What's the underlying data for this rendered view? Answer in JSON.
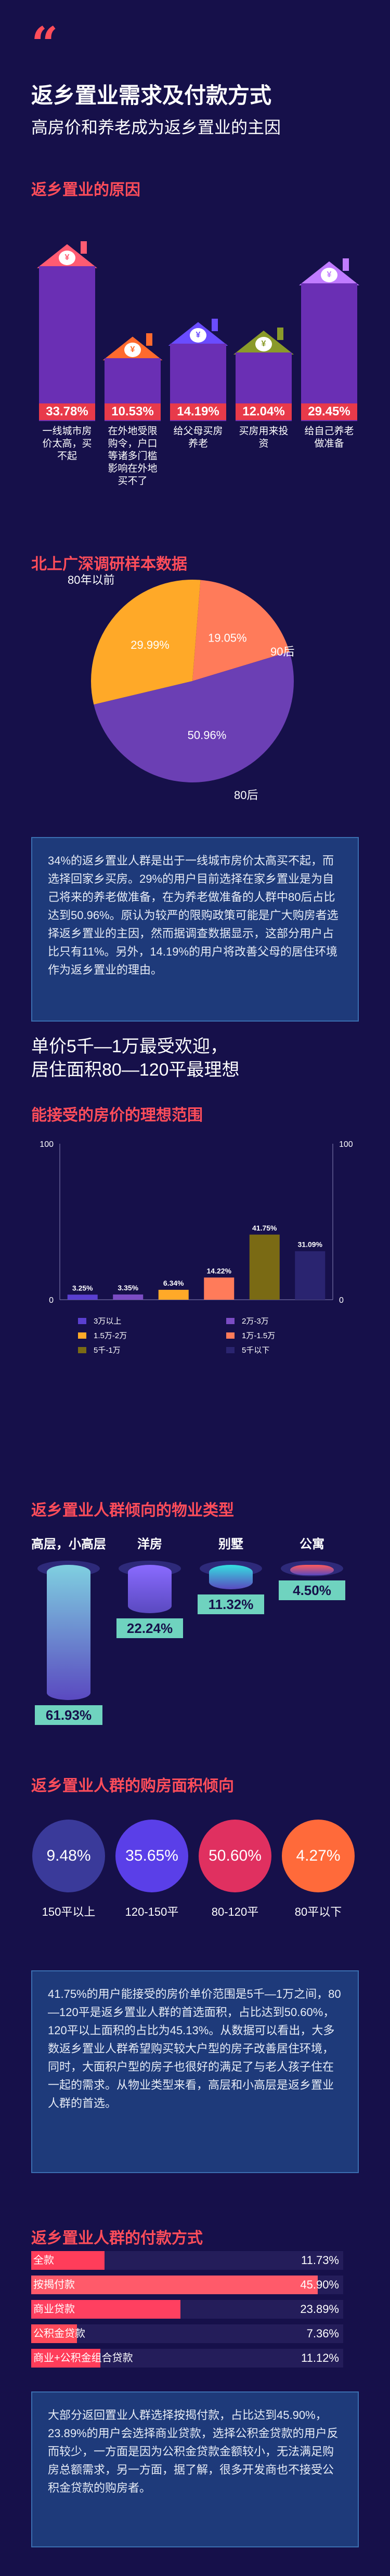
{
  "header": {
    "quote_mark": "“",
    "title": "返乡置业需求及付款方式",
    "subtitle": "高房价和养老成为返乡置业的主因"
  },
  "reasons": {
    "section_title": "返乡置业的原因",
    "chart_data": {
      "type": "bar",
      "categories": [
        "一线城市房价太高，买不起",
        "在外地受限购令，户口等诸多门槛影响在外地买不了",
        "给父母买房养老",
        "买房用来投资",
        "给自己养老做准备"
      ],
      "values": [
        33.78,
        10.53,
        14.19,
        12.04,
        29.45
      ],
      "labels": [
        "33.78%",
        "10.53%",
        "14.19%",
        "12.04%",
        "29.45%"
      ],
      "colors": [
        "#ff5b72",
        "#ff6a2e",
        "#6a4cff",
        "#8a9a2a",
        "#c07bff"
      ]
    }
  },
  "survey": {
    "section_title": "北上广深调研样本数据",
    "chart_data": {
      "type": "pie",
      "series": [
        {
          "name": "80后",
          "value": 50.96,
          "label": "50.96%",
          "color": "#6b3fb4"
        },
        {
          "name": "80年以前",
          "value": 29.99,
          "label": "29.99%",
          "color": "#ffa928"
        },
        {
          "name": "90后",
          "value": 19.05,
          "label": "19.05%",
          "color": "#ff7b5a"
        }
      ]
    },
    "name_80s": "80后",
    "name_pre80": "80年以前",
    "name_90s": "90后"
  },
  "text1": "34%的返乡置业人群是出于一线城市房价太高买不起，而选择回家乡买房。29%的用户目前选择在家乡置业是为自己将来的养老做准备，在为养老做准备的人群中80后占比达到50.96%。原认为较严的限购政策可能是广大购房者选择返乡置业的主因，然而据调查数据显示，这部分用户占比只有11%。另外，14.19%的用户将改善父母的居住环境作为返乡置业的理由。",
  "price_headline": {
    "line1": "单价5千—1万最受欢迎，",
    "line2": "居住面积80—120平最理想"
  },
  "price": {
    "section_title": "能接受的房价的理想范围",
    "chart_data": {
      "type": "bar",
      "categories": [
        "3万以上",
        "2万-3万",
        "1.5万-2万",
        "1万-1.5万",
        "5千-1万",
        "5千以下"
      ],
      "values": [
        3.25,
        3.35,
        6.34,
        14.22,
        41.75,
        31.09
      ],
      "labels": [
        "3.25%",
        "3.35%",
        "6.34%",
        "14.22%",
        "41.75%",
        "31.09%"
      ],
      "colors": [
        "#5a3fd0",
        "#7b4cc4",
        "#ffa928",
        "#ff7b5a",
        "#7a6a14",
        "#2a2470"
      ],
      "ylim": [
        0,
        100
      ],
      "yticks": [
        "100",
        "0"
      ]
    }
  },
  "ptype": {
    "section_title": "返乡置业人群倾向的物业类型",
    "items": [
      {
        "name": "高层，小高层",
        "pct": "61.93%",
        "value": 61.93
      },
      {
        "name": "洋房",
        "pct": "22.24%",
        "value": 22.24
      },
      {
        "name": "别墅",
        "pct": "11.32%",
        "value": 11.32
      },
      {
        "name": "公寓",
        "pct": "4.50%",
        "value": 4.5
      }
    ]
  },
  "area": {
    "section_title": "返乡置业人群的购房面积倾向",
    "items": [
      {
        "pct": "9.48%",
        "label": "150平以上",
        "color": "#3a3a9a"
      },
      {
        "pct": "35.65%",
        "label": "120-150平",
        "color": "#5a3fe8"
      },
      {
        "pct": "50.60%",
        "label": "80-120平",
        "color": "#e03060"
      },
      {
        "pct": "4.27%",
        "label": "80平以下",
        "color": "#ff6a3a"
      }
    ]
  },
  "text2": "41.75%的用户能接受的房价单价范围是5千—1万之间，80—120平是返乡置业人群的首选面积，占比达到50.60%，120平以上面积的占比为45.13%。从数据可以看出，大多数返乡置业人群希望购买较大户型的房子改善居住环境，同时，大面积户型的房子也很好的满足了与老人孩子住在一起的需求。从物业类型来看，高层和小高层是返乡置业人群的首选。",
  "pay": {
    "section_title": "返乡置业人群的付款方式",
    "chart_data": {
      "type": "bar",
      "categories": [
        "全款",
        "按揭付款",
        "商业贷款",
        "公积金贷款",
        "商业+公积金组合贷款"
      ],
      "values": [
        11.73,
        45.9,
        23.89,
        7.36,
        11.12
      ],
      "labels": [
        "11.73%",
        "45.90%",
        "23.89%",
        "7.36%",
        "11.12%"
      ],
      "colors": [
        "#ff3d5a",
        "#ff5a6a",
        "#ff4060",
        "#ff4a5a",
        "#ff3d5a"
      ]
    }
  },
  "text3": "大部分返回置业人群选择按揭付款，占比达到45.90%，23.89%的用户会选择商业贷款，选择公积金贷款的用户反而较少，一方面是因为公积金贷款金额较小，无法满足购房总额需求，另一方面，据了解，很多开发商也不接受公积金贷款的购房者。"
}
